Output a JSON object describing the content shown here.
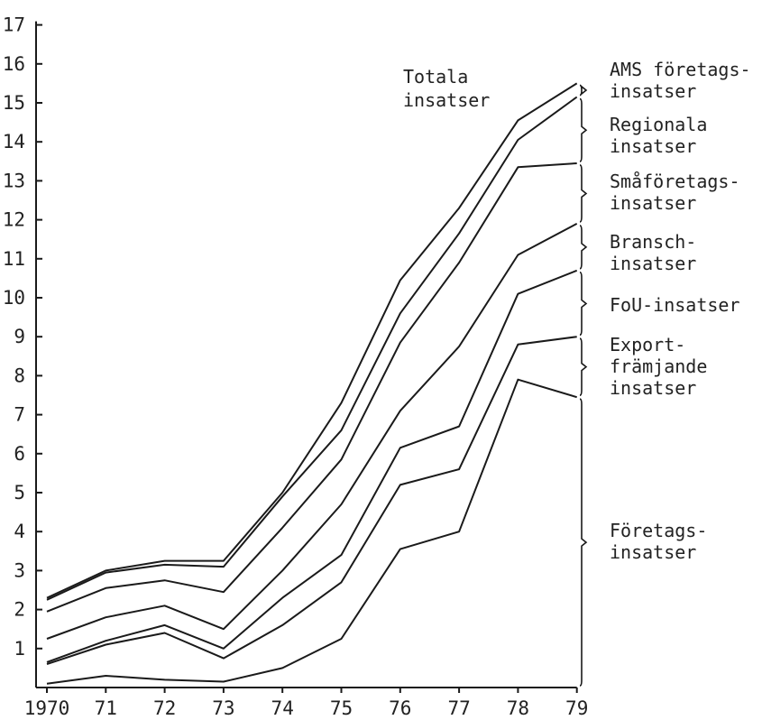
{
  "chart_data": {
    "type": "area",
    "stacked": true,
    "title": "",
    "xlabel": "",
    "ylabel": "",
    "x": [
      "1970",
      "71",
      "72",
      "73",
      "74",
      "75",
      "76",
      "77",
      "78",
      "79"
    ],
    "ylim": [
      0,
      17
    ],
    "yticks": [
      1,
      2,
      3,
      4,
      5,
      6,
      7,
      8,
      9,
      10,
      11,
      12,
      13,
      14,
      15,
      16,
      17
    ],
    "grid": false,
    "cumulative_lines": [
      {
        "name": "Företagsinsatser",
        "values": [
          0.1,
          0.3,
          0.2,
          0.15,
          0.5,
          1.25,
          3.55,
          4.0,
          7.9,
          7.45
        ]
      },
      {
        "name": "Exportfrämjande insatser",
        "values": [
          0.6,
          1.1,
          1.4,
          0.75,
          1.6,
          2.7,
          5.2,
          5.6,
          8.8,
          9.0
        ]
      },
      {
        "name": "FoU-insatser",
        "values": [
          0.65,
          1.2,
          1.6,
          1.0,
          2.3,
          3.4,
          6.15,
          6.7,
          10.1,
          10.7
        ]
      },
      {
        "name": "Branschinsatser",
        "values": [
          1.25,
          1.8,
          2.1,
          1.5,
          3.0,
          4.7,
          7.1,
          8.75,
          11.1,
          11.9
        ]
      },
      {
        "name": "Småföretagsinsatser",
        "values": [
          1.95,
          2.55,
          2.75,
          2.45,
          4.1,
          5.85,
          8.85,
          10.9,
          13.35,
          13.45
        ]
      },
      {
        "name": "Regionala insatser",
        "values": [
          2.25,
          2.95,
          3.15,
          3.1,
          4.9,
          6.6,
          9.6,
          11.65,
          14.05,
          15.15
        ]
      },
      {
        "name": "AMS företagsinsatser",
        "values": [
          2.3,
          3.0,
          3.25,
          3.25,
          5.0,
          7.3,
          10.45,
          12.3,
          14.55,
          15.5
        ]
      }
    ],
    "annotations": {
      "totals": [
        "Totala",
        "insatser"
      ],
      "right_labels": [
        {
          "lines": [
            "AMS företags-",
            "insatser"
          ]
        },
        {
          "lines": [
            "Regionala",
            "insatser"
          ]
        },
        {
          "lines": [
            "Småföretags-",
            "insatser"
          ]
        },
        {
          "lines": [
            "Bransch-",
            "insatser"
          ]
        },
        {
          "lines": [
            "FoU-insatser"
          ]
        },
        {
          "lines": [
            "Export-",
            "främjande",
            "insatser"
          ]
        },
        {
          "lines": [
            "Företags-",
            "insatser"
          ]
        }
      ]
    }
  }
}
